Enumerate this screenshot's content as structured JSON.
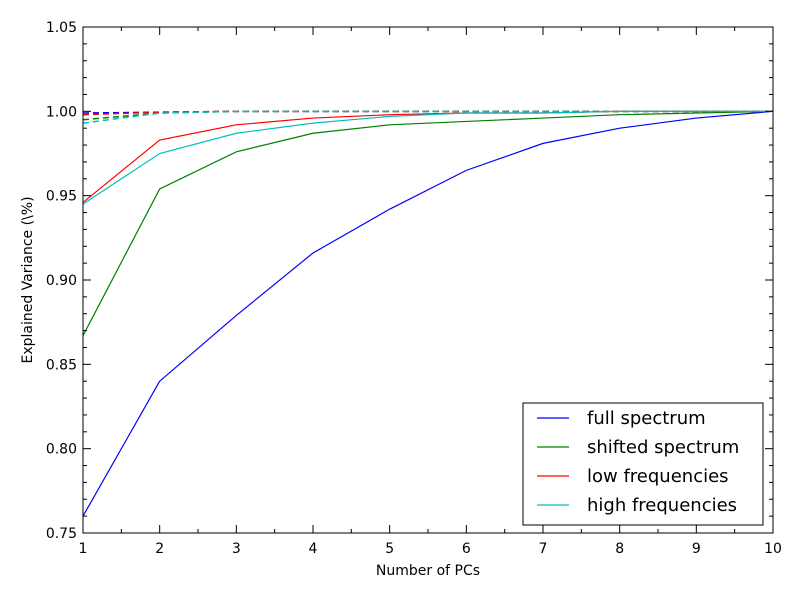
{
  "chart_data": {
    "type": "line",
    "title": "",
    "xlabel": "Number of PCs",
    "ylabel": "Explained Variance (\\%)",
    "xlim": [
      1,
      10
    ],
    "ylim": [
      0.75,
      1.05
    ],
    "x": [
      1,
      2,
      3,
      4,
      5,
      6,
      7,
      8,
      9,
      10
    ],
    "x_ticks": [
      "1",
      "2",
      "3",
      "4",
      "5",
      "6",
      "7",
      "8",
      "9",
      "10"
    ],
    "y_ticks": [
      "0.75",
      "0.80",
      "0.85",
      "0.90",
      "0.95",
      "1.00",
      "1.05"
    ],
    "y_tick_values": [
      0.75,
      0.8,
      0.85,
      0.9,
      0.95,
      1.0,
      1.05
    ],
    "grid": false,
    "legend_position": "bottom-right",
    "series": [
      {
        "name": "full spectrum",
        "color": "#0000ff",
        "style": "solid",
        "values": [
          0.76,
          0.84,
          0.879,
          0.916,
          0.942,
          0.965,
          0.981,
          0.99,
          0.996,
          1.0
        ]
      },
      {
        "name": "shifted spectrum",
        "color": "#008000",
        "style": "solid",
        "values": [
          0.867,
          0.954,
          0.976,
          0.987,
          0.992,
          0.994,
          0.996,
          0.998,
          0.999,
          1.0
        ]
      },
      {
        "name": "low frequencies",
        "color": "#ff0000",
        "style": "solid",
        "values": [
          0.946,
          0.983,
          0.992,
          0.996,
          0.998,
          0.999,
          0.999,
          1.0,
          1.0,
          1.0
        ]
      },
      {
        "name": "high frequencies",
        "color": "#00bfbf",
        "style": "solid",
        "values": [
          0.945,
          0.975,
          0.987,
          0.993,
          0.997,
          0.999,
          0.999,
          1.0,
          1.0,
          1.0
        ]
      },
      {
        "color": "#0000ff",
        "style": "dashed",
        "values": [
          0.999,
          0.9995,
          1.0,
          1.0,
          1.0,
          1.0,
          1.0,
          1.0,
          1.0,
          1.0
        ]
      },
      {
        "color": "#008000",
        "style": "dashed",
        "values": [
          0.995,
          0.999,
          1.0,
          1.0,
          1.0,
          1.0,
          1.0,
          1.0,
          1.0,
          1.0
        ]
      },
      {
        "color": "#ff0000",
        "style": "dashed",
        "values": [
          0.998,
          0.9995,
          1.0,
          1.0,
          1.0,
          1.0,
          1.0,
          1.0,
          1.0,
          1.0
        ]
      },
      {
        "color": "#00bfbf",
        "style": "dashed",
        "values": [
          0.993,
          0.999,
          1.0,
          1.0,
          1.0,
          1.0,
          1.0,
          1.0,
          1.0,
          1.0
        ]
      }
    ]
  }
}
